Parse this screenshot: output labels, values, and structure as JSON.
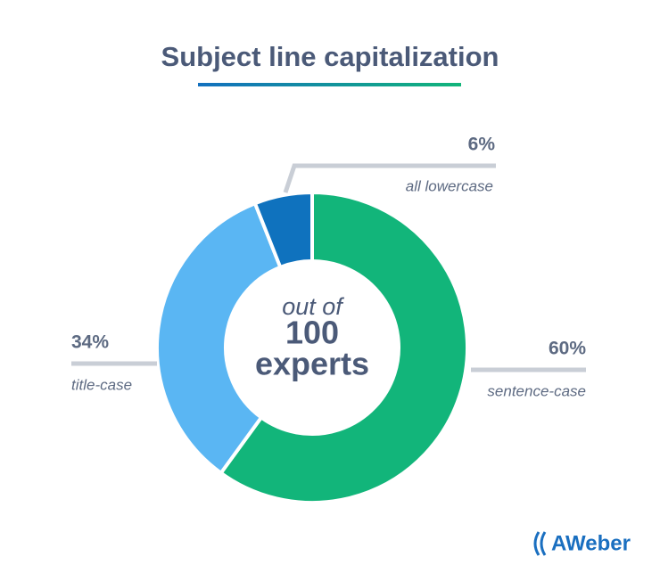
{
  "chart_data": {
    "type": "pie",
    "title": "Subject line capitalization",
    "categories": [
      "sentence-case",
      "title-case",
      "all lowercase"
    ],
    "values": [
      60,
      34,
      6
    ],
    "value_labels": [
      "60%",
      "34%",
      "6%"
    ],
    "colors": [
      "#12b57a",
      "#5ab6f3",
      "#0f72be"
    ],
    "center_text": [
      "out of",
      "100",
      "experts"
    ]
  },
  "logo": "AWeber"
}
